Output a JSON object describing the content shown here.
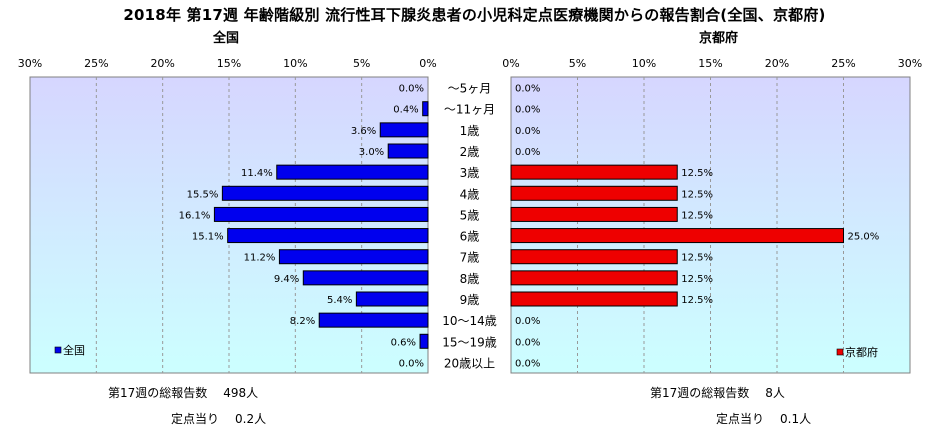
{
  "title": "2018年 第17週 年齢階級別 流行性耳下腺炎患者の小児科定点医療機関からの報告割合(全国、京都府)",
  "subtitles": {
    "left": "全国",
    "right": "京都府"
  },
  "colors": {
    "left": "#0000ee",
    "right": "#ee0000",
    "bg_top": "#d6d6ff",
    "bg_bottom": "#ccffff"
  },
  "chart_data": {
    "type": "bar",
    "orientation": "horizontal-population-pyramid",
    "categories": [
      "～5ヶ月",
      "～11ヶ月",
      "1歳",
      "2歳",
      "3歳",
      "4歳",
      "5歳",
      "6歳",
      "7歳",
      "8歳",
      "9歳",
      "10～14歳",
      "15～19歳",
      "20歳以上"
    ],
    "xlim": [
      0,
      30
    ],
    "x_ticks": [
      "30%",
      "25%",
      "20%",
      "15%",
      "10%",
      "5%",
      "0%"
    ],
    "x_ticks_right": [
      "0%",
      "5%",
      "10%",
      "15%",
      "20%",
      "25%",
      "30%"
    ],
    "series": [
      {
        "name": "全国",
        "side": "left",
        "values": [
          0.0,
          0.4,
          3.6,
          3.0,
          11.4,
          15.5,
          16.1,
          15.1,
          11.2,
          9.4,
          5.4,
          8.2,
          0.6,
          0.0
        ],
        "labels": [
          "0.0%",
          "0.4%",
          "3.6%",
          "3.0%",
          "11.4%",
          "15.5%",
          "16.1%",
          "15.1%",
          "11.2%",
          "9.4%",
          "5.4%",
          "8.2%",
          "0.6%",
          "0.0%"
        ]
      },
      {
        "name": "京都府",
        "side": "right",
        "values": [
          0.0,
          0.0,
          0.0,
          0.0,
          12.5,
          12.5,
          12.5,
          25.0,
          12.5,
          12.5,
          12.5,
          0.0,
          0.0,
          0.0
        ],
        "labels": [
          "0.0%",
          "0.0%",
          "0.0%",
          "0.0%",
          "12.5%",
          "12.5%",
          "12.5%",
          "25.0%",
          "12.5%",
          "12.5%",
          "12.5%",
          "0.0%",
          "0.0%",
          "0.0%"
        ]
      }
    ],
    "legend_left": "全国",
    "legend_right": "京都府"
  },
  "stats": {
    "left": {
      "total_label": "第17週の総報告数",
      "total_value": "498人",
      "per_label": "定点当り",
      "per_value": "0.2人"
    },
    "right": {
      "total_label": "第17週の総報告数",
      "total_value": "8人",
      "per_label": "定点当り",
      "per_value": "0.1人"
    }
  }
}
